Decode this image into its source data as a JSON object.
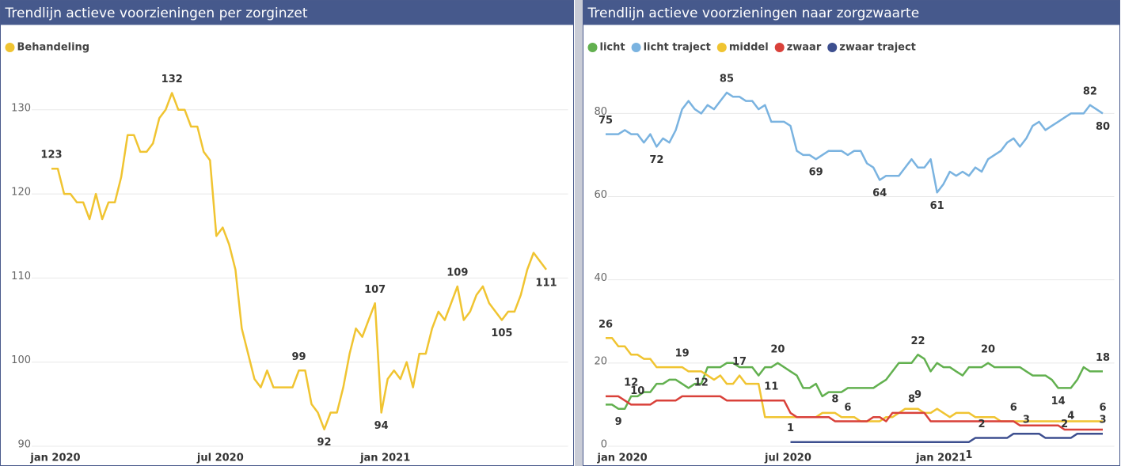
{
  "chart_data": [
    {
      "type": "line",
      "title": "Trendlijn actieve voorzieningen per zorginzet",
      "categories": [
        "jan 2020",
        null,
        null,
        null,
        null,
        null,
        null,
        null,
        null,
        null,
        null,
        null,
        null,
        null,
        null,
        null,
        null,
        null,
        null,
        null,
        null,
        null,
        null,
        null,
        null,
        null,
        "jul 2020",
        null,
        null,
        null,
        null,
        null,
        null,
        null,
        null,
        null,
        null,
        null,
        null,
        null,
        null,
        null,
        null,
        null,
        null,
        null,
        null,
        null,
        null,
        null,
        null,
        null,
        "jan 2021",
        null,
        null,
        null,
        null,
        null,
        null,
        null,
        null,
        null,
        null,
        null,
        null,
        null,
        null,
        null,
        null,
        null,
        null,
        null,
        null,
        null,
        null,
        null,
        null,
        null,
        null
      ],
      "series": [
        {
          "name": "Behandeling",
          "color": "#f0c431",
          "values": [
            123,
            123,
            120,
            120,
            119,
            119,
            117,
            120,
            117,
            119,
            119,
            122,
            127,
            127,
            125,
            125,
            126,
            129,
            130,
            132,
            130,
            130,
            128,
            128,
            125,
            124,
            115,
            116,
            114,
            111,
            104,
            101,
            98,
            97,
            99,
            97,
            97,
            97,
            97,
            99,
            99,
            95,
            94,
            92,
            94,
            94,
            97,
            101,
            104,
            103,
            105,
            107,
            94,
            98,
            99,
            98,
            100,
            97,
            101,
            101,
            104,
            106,
            105,
            107,
            109,
            105,
            106,
            108,
            109,
            107,
            106,
            105,
            106,
            106,
            108,
            111,
            113,
            112,
            111
          ],
          "value_labels": [
            "123",
            null,
            null,
            null,
            null,
            null,
            null,
            null,
            null,
            null,
            null,
            null,
            null,
            null,
            null,
            null,
            null,
            null,
            null,
            "132",
            null,
            null,
            null,
            null,
            null,
            null,
            null,
            null,
            null,
            null,
            null,
            null,
            null,
            null,
            null,
            null,
            null,
            null,
            null,
            "99",
            null,
            null,
            null,
            "92",
            null,
            null,
            null,
            null,
            null,
            null,
            null,
            "107",
            "94",
            null,
            null,
            null,
            null,
            null,
            null,
            null,
            null,
            null,
            null,
            null,
            "109",
            null,
            null,
            null,
            null,
            null,
            null,
            "105",
            null,
            null,
            null,
            null,
            null,
            null,
            "111"
          ]
        }
      ],
      "ylim": [
        90,
        136
      ],
      "yticks": [
        90,
        100,
        110,
        120,
        130
      ],
      "grid": true,
      "legend": "top-left"
    },
    {
      "type": "line",
      "title": "Trendlijn actieve voorzieningen naar zorgzwaarte",
      "categories": [
        null,
        null,
        "jan 2020",
        null,
        null,
        null,
        null,
        null,
        null,
        null,
        null,
        null,
        null,
        null,
        null,
        null,
        null,
        null,
        null,
        null,
        null,
        null,
        null,
        null,
        null,
        null,
        null,
        null,
        "jul 2020",
        null,
        null,
        null,
        null,
        null,
        null,
        null,
        null,
        null,
        null,
        null,
        null,
        null,
        null,
        null,
        null,
        null,
        null,
        null,
        null,
        null,
        null,
        null,
        "jan 2021",
        null,
        null,
        null,
        null,
        null,
        null,
        null,
        null,
        null,
        null,
        null,
        null,
        null,
        null,
        null,
        null,
        null,
        null,
        null,
        null,
        null,
        null,
        null,
        null,
        null,
        null
      ],
      "series": [
        {
          "name": "licht",
          "color": "#62b04f",
          "values": [
            10,
            10,
            9,
            9,
            12,
            12,
            13,
            13,
            15,
            15,
            16,
            16,
            15,
            14,
            15,
            15,
            19,
            19,
            19,
            20,
            20,
            19,
            19,
            19,
            17,
            19,
            19,
            20,
            19,
            18,
            17,
            14,
            14,
            15,
            12,
            13,
            13,
            13,
            14,
            14,
            14,
            14,
            14,
            15,
            16,
            18,
            20,
            20,
            20,
            22,
            21,
            18,
            20,
            19,
            19,
            18,
            17,
            19,
            19,
            19,
            20,
            19,
            19,
            19,
            19,
            19,
            18,
            17,
            17,
            17,
            16,
            14,
            14,
            14,
            16,
            19,
            18,
            18,
            18
          ],
          "value_labels": [
            null,
            null,
            "9",
            null,
            "12",
            null,
            null,
            null,
            null,
            null,
            null,
            null,
            null,
            null,
            null,
            null,
            null,
            null,
            null,
            null,
            null,
            null,
            null,
            null,
            null,
            null,
            null,
            "20",
            null,
            null,
            null,
            null,
            null,
            null,
            null,
            null,
            null,
            null,
            null,
            null,
            null,
            null,
            null,
            null,
            null,
            null,
            null,
            null,
            null,
            "22",
            null,
            null,
            null,
            null,
            null,
            null,
            null,
            null,
            null,
            null,
            "20",
            null,
            null,
            null,
            null,
            null,
            null,
            null,
            null,
            null,
            null,
            "14",
            null,
            null,
            null,
            null,
            null,
            null,
            "18"
          ]
        },
        {
          "name": "licht traject",
          "color": "#7ab3e0",
          "values": [
            75,
            75,
            75,
            76,
            75,
            75,
            73,
            75,
            72,
            74,
            73,
            76,
            81,
            83,
            81,
            80,
            82,
            81,
            83,
            85,
            84,
            84,
            83,
            83,
            81,
            82,
            78,
            78,
            78,
            77,
            71,
            70,
            70,
            69,
            70,
            71,
            71,
            71,
            70,
            71,
            71,
            68,
            67,
            64,
            65,
            65,
            65,
            67,
            69,
            67,
            67,
            69,
            61,
            63,
            66,
            65,
            66,
            65,
            67,
            66,
            69,
            70,
            71,
            73,
            74,
            72,
            74,
            77,
            78,
            76,
            77,
            78,
            79,
            80,
            80,
            80,
            82,
            81,
            80
          ],
          "value_labels": [
            "75",
            null,
            null,
            null,
            null,
            null,
            null,
            null,
            "72",
            null,
            null,
            null,
            null,
            null,
            null,
            null,
            null,
            null,
            null,
            "85",
            null,
            null,
            null,
            null,
            null,
            null,
            null,
            null,
            null,
            null,
            null,
            null,
            null,
            "69",
            null,
            null,
            null,
            null,
            null,
            null,
            null,
            null,
            null,
            "64",
            null,
            null,
            null,
            null,
            null,
            null,
            null,
            null,
            "61",
            null,
            null,
            null,
            null,
            null,
            null,
            null,
            null,
            null,
            null,
            null,
            null,
            null,
            null,
            null,
            null,
            null,
            null,
            null,
            null,
            null,
            null,
            null,
            "82",
            null,
            "80"
          ]
        },
        {
          "name": "middel",
          "color": "#f0c431",
          "values": [
            26,
            26,
            24,
            24,
            22,
            22,
            21,
            21,
            19,
            19,
            19,
            19,
            19,
            18,
            18,
            18,
            17,
            16,
            17,
            15,
            15,
            17,
            15,
            15,
            15,
            7,
            7,
            7,
            7,
            7,
            7,
            7,
            7,
            7,
            8,
            8,
            8,
            7,
            7,
            7,
            6,
            6,
            6,
            6,
            7,
            7,
            8,
            9,
            9,
            9,
            8,
            8,
            9,
            8,
            7,
            8,
            8,
            8,
            7,
            7,
            7,
            7,
            6,
            6,
            6,
            6,
            6,
            6,
            6,
            6,
            6,
            6,
            6,
            6,
            6,
            6,
            6,
            6,
            6
          ],
          "value_labels": [
            "26",
            null,
            null,
            null,
            null,
            null,
            null,
            null,
            null,
            null,
            null,
            null,
            "19",
            null,
            null,
            null,
            null,
            null,
            null,
            null,
            null,
            "17",
            null,
            null,
            null,
            null,
            null,
            null,
            null,
            null,
            null,
            null,
            null,
            null,
            null,
            null,
            "8",
            null,
            null,
            null,
            null,
            null,
            null,
            null,
            null,
            null,
            null,
            null,
            null,
            "9",
            null,
            null,
            null,
            null,
            null,
            null,
            null,
            null,
            null,
            null,
            null,
            null,
            null,
            null,
            null,
            null,
            null,
            null,
            null,
            null,
            null,
            null,
            null,
            null,
            null,
            null,
            null,
            null,
            "6"
          ]
        },
        {
          "name": "zwaar",
          "color": "#d9413a",
          "values": [
            12,
            12,
            12,
            11,
            10,
            10,
            10,
            10,
            11,
            11,
            11,
            11,
            12,
            12,
            12,
            12,
            12,
            12,
            12,
            11,
            11,
            11,
            11,
            11,
            11,
            11,
            11,
            11,
            11,
            8,
            7,
            7,
            7,
            7,
            7,
            7,
            6,
            6,
            6,
            6,
            6,
            6,
            7,
            7,
            6,
            8,
            8,
            8,
            8,
            8,
            8,
            6,
            6,
            6,
            6,
            6,
            6,
            6,
            6,
            6,
            6,
            6,
            6,
            6,
            6,
            5,
            5,
            5,
            5,
            5,
            5,
            5,
            4,
            4,
            4,
            4,
            4,
            4,
            4
          ],
          "value_labels": [
            null,
            null,
            null,
            null,
            null,
            "10",
            null,
            null,
            null,
            null,
            null,
            null,
            null,
            null,
            null,
            "12",
            null,
            null,
            null,
            null,
            null,
            null,
            null,
            null,
            null,
            null,
            "11",
            null,
            null,
            null,
            null,
            null,
            null,
            null,
            null,
            null,
            null,
            null,
            "6",
            null,
            null,
            null,
            null,
            null,
            null,
            null,
            null,
            null,
            "8",
            null,
            null,
            null,
            null,
            null,
            null,
            null,
            null,
            null,
            null,
            null,
            null,
            null,
            null,
            null,
            "6",
            null,
            null,
            null,
            null,
            null,
            null,
            null,
            null,
            "4",
            null,
            null,
            null,
            null,
            null
          ]
        },
        {
          "name": "zwaar traject",
          "color": "#3d4f8f",
          "values": [
            null,
            null,
            null,
            null,
            null,
            null,
            null,
            null,
            null,
            null,
            null,
            null,
            null,
            null,
            null,
            null,
            null,
            null,
            null,
            null,
            null,
            null,
            null,
            null,
            null,
            null,
            null,
            null,
            null,
            1,
            1,
            1,
            1,
            1,
            1,
            1,
            1,
            1,
            1,
            1,
            1,
            1,
            1,
            1,
            1,
            1,
            1,
            1,
            1,
            1,
            1,
            1,
            1,
            1,
            1,
            1,
            1,
            1,
            2,
            2,
            2,
            2,
            2,
            2,
            3,
            3,
            3,
            3,
            3,
            2,
            2,
            2,
            2,
            2,
            3,
            3,
            3,
            3,
            3
          ],
          "value_labels": [
            null,
            null,
            null,
            null,
            null,
            null,
            null,
            null,
            null,
            null,
            null,
            null,
            null,
            null,
            null,
            null,
            null,
            null,
            null,
            null,
            null,
            null,
            null,
            null,
            null,
            null,
            null,
            null,
            null,
            "1",
            null,
            null,
            null,
            null,
            null,
            null,
            null,
            null,
            null,
            null,
            null,
            null,
            null,
            null,
            null,
            null,
            null,
            null,
            null,
            null,
            null,
            null,
            null,
            null,
            null,
            null,
            null,
            "1",
            null,
            "2",
            null,
            null,
            null,
            null,
            null,
            null,
            "3",
            null,
            null,
            null,
            null,
            null,
            "2",
            null,
            null,
            null,
            null,
            null,
            "3"
          ]
        }
      ],
      "ylim": [
        0,
        93
      ],
      "yticks": [
        0,
        20,
        40,
        60,
        80
      ],
      "grid": true,
      "legend": "top-left"
    }
  ]
}
